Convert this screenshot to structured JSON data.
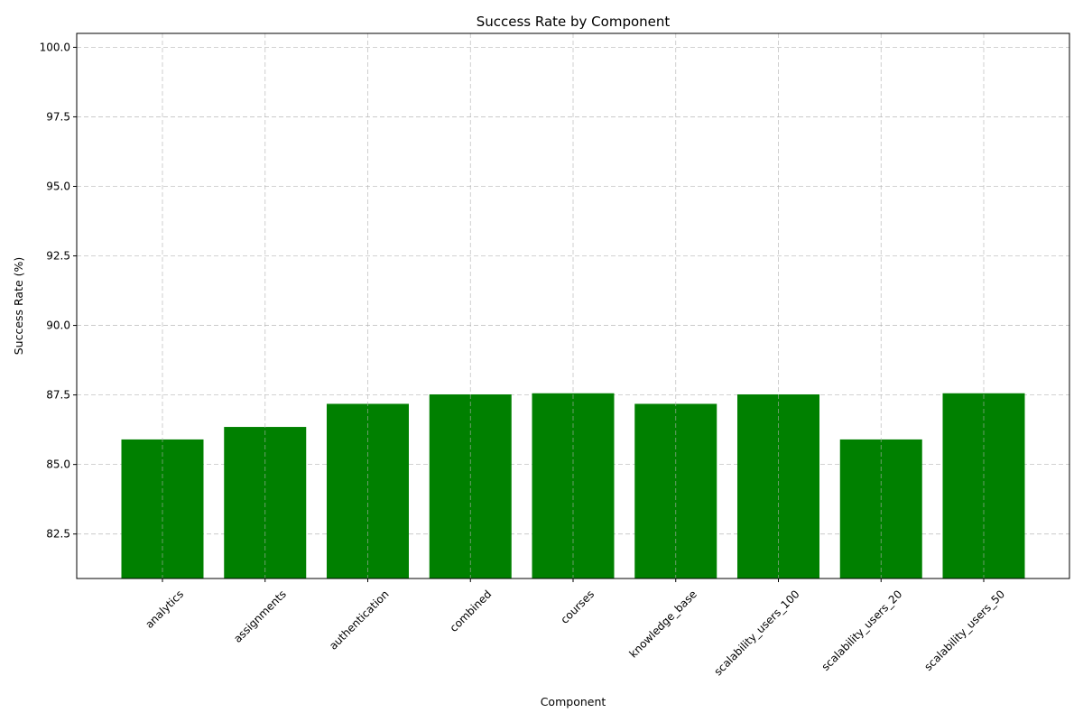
{
  "chart_data": {
    "type": "bar",
    "title": "Success Rate by Component",
    "xlabel": "Component",
    "ylabel": "Success Rate (%)",
    "categories": [
      "analytics",
      "assignments",
      "authentication",
      "combined",
      "courses",
      "knowledge_base",
      "scalability_users_100",
      "scalability_users_20",
      "scalability_users_50"
    ],
    "values": [
      85.9,
      86.35,
      87.18,
      87.52,
      87.56,
      87.18,
      87.52,
      85.9,
      87.56
    ],
    "ylim": [
      80.9,
      100.5
    ],
    "yticks": [
      82.5,
      85.0,
      87.5,
      90.0,
      92.5,
      95.0,
      97.5,
      100.0
    ],
    "ytick_labels": [
      "82.5",
      "85.0",
      "87.5",
      "90.0",
      "92.5",
      "95.0",
      "97.5",
      "100.0"
    ],
    "grid": true,
    "bar_color": "#008000"
  }
}
